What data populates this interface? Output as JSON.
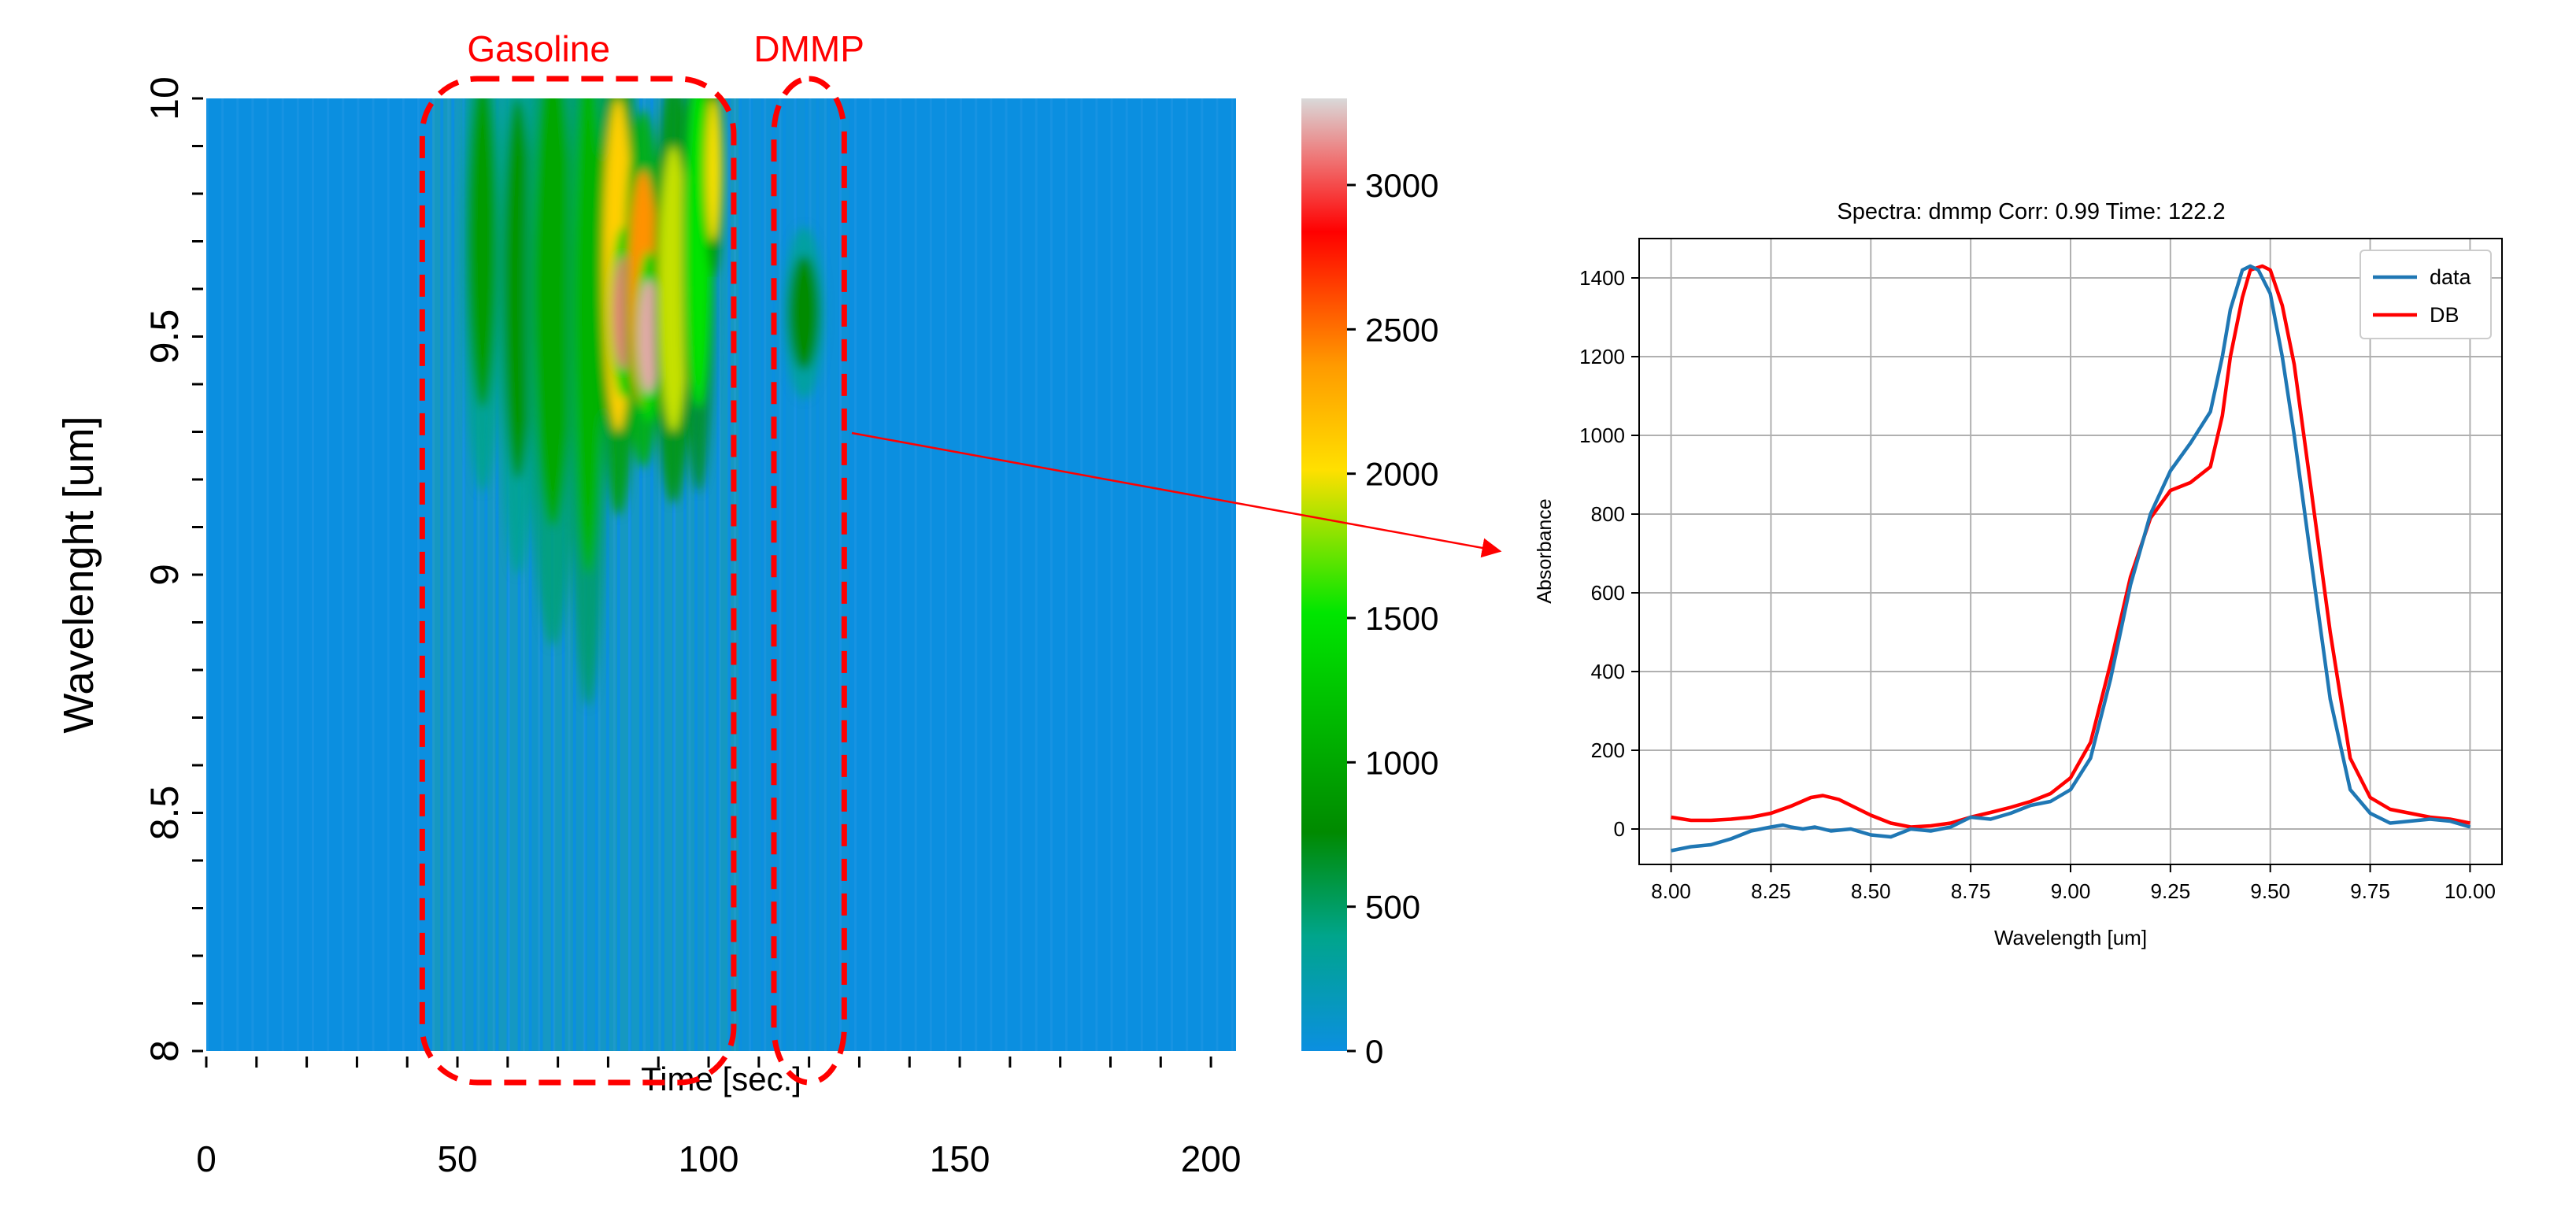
{
  "chart_data": [
    {
      "type": "heatmap",
      "xlabel": "Time [sec.]",
      "ylabel": "Wavelenght  [um]",
      "xlim": [
        0,
        205
      ],
      "ylim": [
        8,
        10
      ],
      "x_ticks": [
        0,
        50,
        100,
        150,
        200
      ],
      "y_ticks": [
        8,
        8.5,
        9,
        9.5,
        10
      ],
      "colorbar": {
        "ticks": [
          0,
          500,
          1000,
          1500,
          2000,
          2500,
          3000
        ],
        "range": [
          0,
          3300
        ],
        "colormap": [
          "#0b8fe0",
          "#00a58c",
          "#008a00",
          "#00e600",
          "#ffe000",
          "#ff9a00",
          "#ff0000",
          "#ee7a7a",
          "#d9d9d9"
        ]
      },
      "annotations": [
        {
          "label": "Gasoline",
          "time_range": [
            43,
            105
          ],
          "wavelength_range": [
            8,
            10
          ],
          "color": "#ff0000"
        },
        {
          "label": "DMMP",
          "time_range": [
            113,
            127
          ],
          "wavelength_range": [
            8,
            10
          ],
          "color": "#ff0000"
        }
      ],
      "background_color": "#0b8fe0",
      "hotspots": [
        {
          "t": 55,
          "w": 9.7,
          "value": 900,
          "dt": 3,
          "dw": 0.35
        },
        {
          "t": 62,
          "w": 9.6,
          "value": 850,
          "dt": 3,
          "dw": 0.4
        },
        {
          "t": 69,
          "w": 9.6,
          "value": 1000,
          "dt": 4,
          "dw": 0.5
        },
        {
          "t": 76,
          "w": 9.55,
          "value": 1100,
          "dt": 3,
          "dw": 0.55
        },
        {
          "t": 82,
          "w": 9.65,
          "value": 2100,
          "dt": 3,
          "dw": 0.35
        },
        {
          "t": 83,
          "w": 9.55,
          "value": 3100,
          "dt": 2,
          "dw": 0.12
        },
        {
          "t": 87,
          "w": 9.6,
          "value": 2400,
          "dt": 3,
          "dw": 0.25
        },
        {
          "t": 88,
          "w": 9.5,
          "value": 3200,
          "dt": 2,
          "dw": 0.12
        },
        {
          "t": 93,
          "w": 9.6,
          "value": 1900,
          "dt": 3,
          "dw": 0.3
        },
        {
          "t": 98,
          "w": 9.7,
          "value": 1500,
          "dt": 2.5,
          "dw": 0.35
        },
        {
          "t": 101,
          "w": 9.85,
          "value": 2000,
          "dt": 1.5,
          "dw": 0.15
        },
        {
          "t": 119,
          "w": 9.55,
          "value": 750,
          "dt": 3,
          "dw": 0.12
        }
      ]
    },
    {
      "type": "line",
      "title": "Spectra: dmmp Corr: 0.99 Time: 122.2",
      "xlabel": "Wavelength [um]",
      "ylabel": "Absorbance",
      "xlim": [
        7.92,
        10.08
      ],
      "ylim": [
        -90,
        1500
      ],
      "x_ticks": [
        "8.00",
        "8.25",
        "8.50",
        "8.75",
        "9.00",
        "9.25",
        "9.50",
        "9.75",
        "10.00"
      ],
      "y_ticks": [
        0,
        200,
        400,
        600,
        800,
        1000,
        1200,
        1400
      ],
      "grid": true,
      "legend_position": "top-right",
      "series": [
        {
          "name": "data",
          "color": "#1f77b4",
          "x": [
            8.0,
            8.05,
            8.1,
            8.15,
            8.2,
            8.25,
            8.28,
            8.3,
            8.33,
            8.36,
            8.4,
            8.45,
            8.5,
            8.55,
            8.6,
            8.65,
            8.7,
            8.75,
            8.8,
            8.85,
            8.9,
            8.95,
            9.0,
            9.05,
            9.1,
            9.15,
            9.2,
            9.25,
            9.3,
            9.35,
            9.38,
            9.4,
            9.43,
            9.45,
            9.47,
            9.5,
            9.53,
            9.56,
            9.6,
            9.65,
            9.7,
            9.75,
            9.8,
            9.85,
            9.9,
            9.95,
            10.0
          ],
          "y": [
            -55,
            -45,
            -40,
            -25,
            -5,
            5,
            10,
            5,
            0,
            5,
            -5,
            0,
            -15,
            -20,
            0,
            -5,
            5,
            30,
            25,
            40,
            60,
            70,
            100,
            180,
            380,
            620,
            800,
            910,
            980,
            1060,
            1200,
            1320,
            1420,
            1430,
            1420,
            1360,
            1200,
            1000,
            700,
            330,
            100,
            40,
            15,
            20,
            25,
            20,
            5
          ]
        },
        {
          "name": "DB",
          "color": "#ff0000",
          "x": [
            8.0,
            8.05,
            8.1,
            8.15,
            8.2,
            8.25,
            8.3,
            8.35,
            8.38,
            8.42,
            8.45,
            8.5,
            8.55,
            8.6,
            8.65,
            8.7,
            8.75,
            8.8,
            8.85,
            8.9,
            8.95,
            9.0,
            9.05,
            9.1,
            9.15,
            9.2,
            9.25,
            9.3,
            9.35,
            9.38,
            9.4,
            9.43,
            9.45,
            9.48,
            9.5,
            9.53,
            9.56,
            9.6,
            9.65,
            9.7,
            9.75,
            9.8,
            9.85,
            9.9,
            9.95,
            10.0
          ],
          "y": [
            30,
            22,
            22,
            25,
            30,
            40,
            58,
            80,
            85,
            75,
            60,
            35,
            15,
            5,
            8,
            15,
            30,
            42,
            55,
            70,
            90,
            130,
            220,
            420,
            640,
            790,
            860,
            880,
            920,
            1050,
            1200,
            1350,
            1420,
            1430,
            1420,
            1330,
            1180,
            880,
            500,
            180,
            80,
            50,
            40,
            30,
            25,
            15
          ]
        }
      ]
    }
  ]
}
